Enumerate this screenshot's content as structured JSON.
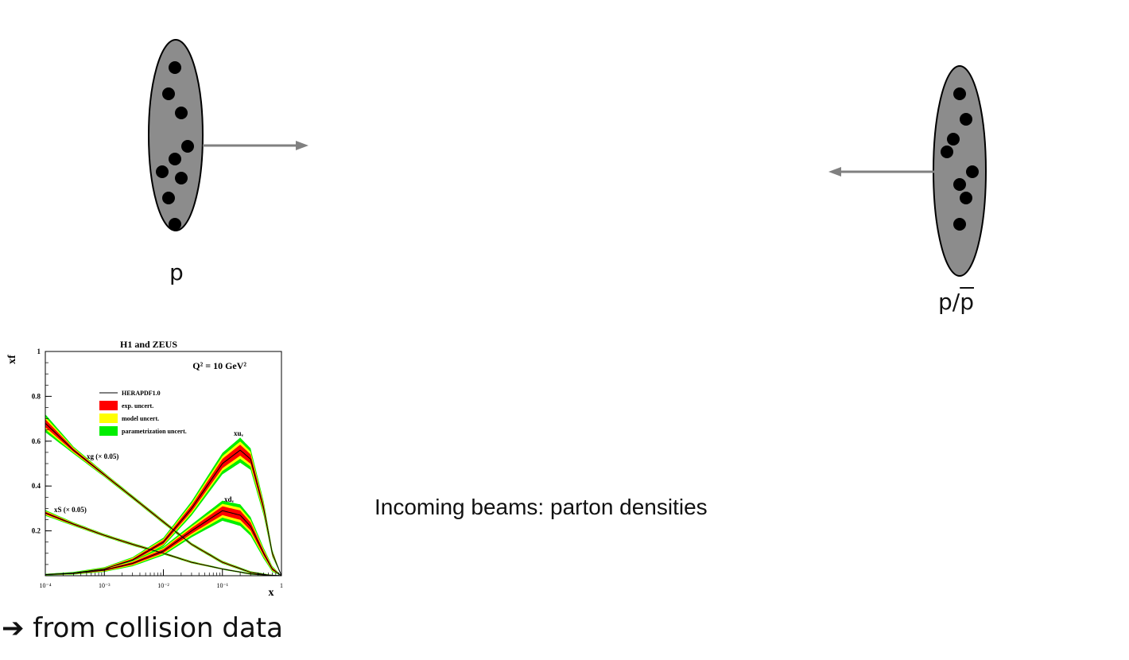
{
  "diagram": {
    "proton_left_label": "p",
    "proton_right_label_p": "p",
    "proton_right_label_slash": "/",
    "proton_right_label_pbar": "p"
  },
  "caption": "Incoming beams: parton densities",
  "footer": "➔ from collision data",
  "colors": {
    "proton_fill": "#8c8c8c",
    "arrow": "#808080",
    "exp_band": "#ff0000",
    "model_band": "#ffff00",
    "param_band": "#00ee00"
  },
  "chart_data": {
    "type": "line",
    "title": "H1 and ZEUS",
    "annotation": "Q² = 10 GeV²",
    "xlabel": "x",
    "ylabel": "xf",
    "x_scale": "log",
    "xlim": [
      0.0001,
      1
    ],
    "ylim": [
      0,
      1
    ],
    "x_ticks": [
      {
        "value": 0.0001,
        "label": "10⁻⁴"
      },
      {
        "value": 0.001,
        "label": "10⁻³"
      },
      {
        "value": 0.01,
        "label": "10⁻²"
      },
      {
        "value": 0.1,
        "label": "10⁻¹"
      },
      {
        "value": 1,
        "label": "1"
      }
    ],
    "y_ticks": [
      {
        "value": 0.2,
        "label": "0.2"
      },
      {
        "value": 0.4,
        "label": "0.4"
      },
      {
        "value": 0.6,
        "label": "0.6"
      },
      {
        "value": 0.8,
        "label": "0.8"
      },
      {
        "value": 1,
        "label": "1"
      }
    ],
    "legend": {
      "placement": "upper-left",
      "entries": [
        {
          "label": "HERAPDF1.0",
          "style": "line",
          "color": "#000000"
        },
        {
          "label": "exp. uncert.",
          "style": "band",
          "color": "#ff0000"
        },
        {
          "label": "model uncert.",
          "style": "band",
          "color": "#ffff00"
        },
        {
          "label": "parametrization uncert.",
          "style": "band",
          "color": "#00ee00"
        }
      ]
    },
    "series": [
      {
        "name": "xg (× 0.05)",
        "x": [
          0.0001,
          0.0003,
          0.001,
          0.003,
          0.01,
          0.03,
          0.1,
          0.3,
          0.6,
          1
        ],
        "y": [
          0.68,
          0.56,
          0.45,
          0.35,
          0.24,
          0.14,
          0.06,
          0.015,
          0.003,
          0
        ],
        "band_halfwidth": [
          0.025,
          0.01,
          0.006,
          0.005,
          0.005,
          0.004,
          0.004,
          0.003,
          0.002,
          0
        ]
      },
      {
        "name": "xS (× 0.05)",
        "x": [
          0.0001,
          0.0003,
          0.001,
          0.003,
          0.01,
          0.03,
          0.1,
          0.3,
          0.6,
          1
        ],
        "y": [
          0.28,
          0.23,
          0.18,
          0.14,
          0.1,
          0.06,
          0.03,
          0.008,
          0.002,
          0
        ],
        "band_halfwidth": [
          0.008,
          0.005,
          0.004,
          0.004,
          0.003,
          0.003,
          0.002,
          0.002,
          0.001,
          0
        ]
      },
      {
        "name": "xuᵥ",
        "x": [
          0.0001,
          0.0003,
          0.001,
          0.003,
          0.01,
          0.03,
          0.1,
          0.2,
          0.3,
          0.5,
          0.7,
          1
        ],
        "y": [
          0.005,
          0.012,
          0.03,
          0.07,
          0.15,
          0.3,
          0.5,
          0.56,
          0.52,
          0.3,
          0.1,
          0
        ],
        "band_halfwidth": [
          0.002,
          0.003,
          0.005,
          0.008,
          0.012,
          0.02,
          0.03,
          0.035,
          0.03,
          0.02,
          0.01,
          0
        ]
      },
      {
        "name": "xdᵥ",
        "x": [
          0.0001,
          0.0003,
          0.001,
          0.003,
          0.01,
          0.03,
          0.1,
          0.2,
          0.3,
          0.5,
          0.7,
          1
        ],
        "y": [
          0.005,
          0.01,
          0.025,
          0.055,
          0.11,
          0.2,
          0.29,
          0.27,
          0.22,
          0.1,
          0.03,
          0
        ],
        "band_halfwidth": [
          0.002,
          0.003,
          0.005,
          0.008,
          0.012,
          0.018,
          0.028,
          0.03,
          0.026,
          0.015,
          0.008,
          0
        ]
      }
    ]
  }
}
